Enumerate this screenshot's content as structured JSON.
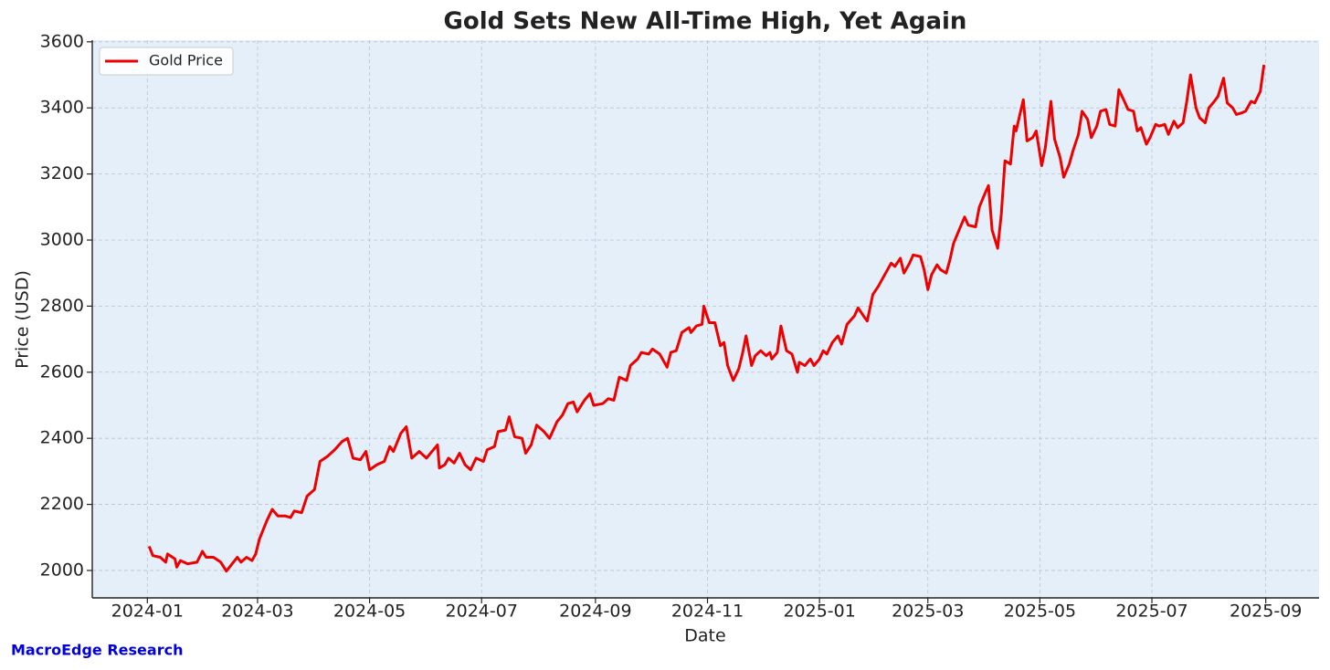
{
  "chart_data": {
    "type": "line",
    "title": "Gold Sets New All-Time High, Yet Again",
    "x_label": "Date",
    "y_label": "Price (USD)",
    "source": "MacroEdge Research",
    "legend": "upper left",
    "grid": true,
    "xlim": [
      "2023-12-02",
      "2025-09-30"
    ],
    "ylim": [
      1917,
      3605
    ],
    "xticks": [
      {
        "value": "2024-01-01",
        "label": "2024-01"
      },
      {
        "value": "2024-03-01",
        "label": "2024-03"
      },
      {
        "value": "2024-05-01",
        "label": "2024-05"
      },
      {
        "value": "2024-07-01",
        "label": "2024-07"
      },
      {
        "value": "2024-09-01",
        "label": "2024-09"
      },
      {
        "value": "2024-11-01",
        "label": "2024-11"
      },
      {
        "value": "2025-01-01",
        "label": "2025-01"
      },
      {
        "value": "2025-03-01",
        "label": "2025-03"
      },
      {
        "value": "2025-05-01",
        "label": "2025-05"
      },
      {
        "value": "2025-07-01",
        "label": "2025-07"
      },
      {
        "value": "2025-09-01",
        "label": "2025-09"
      }
    ],
    "yticks": [
      2000,
      2200,
      2400,
      2600,
      2800,
      3000,
      3200,
      3400,
      3600
    ],
    "x": [
      "2024-01-02",
      "2024-01-04",
      "2024-01-08",
      "2024-01-11",
      "2024-01-12",
      "2024-01-16",
      "2024-01-17",
      "2024-01-19",
      "2024-01-23",
      "2024-01-28",
      "2024-01-31",
      "2024-02-02",
      "2024-02-06",
      "2024-02-10",
      "2024-02-13",
      "2024-02-19",
      "2024-02-21",
      "2024-02-24",
      "2024-02-27",
      "2024-02-29",
      "2024-03-02",
      "2024-03-06",
      "2024-03-09",
      "2024-03-12",
      "2024-03-16",
      "2024-03-19",
      "2024-03-21",
      "2024-03-25",
      "2024-03-28",
      "2024-04-01",
      "2024-04-04",
      "2024-04-08",
      "2024-04-12",
      "2024-04-16",
      "2024-04-19",
      "2024-04-22",
      "2024-04-26",
      "2024-04-29",
      "2024-05-01",
      "2024-05-05",
      "2024-05-09",
      "2024-05-12",
      "2024-05-14",
      "2024-05-18",
      "2024-05-21",
      "2024-05-24",
      "2024-05-28",
      "2024-06-01",
      "2024-06-04",
      "2024-06-07",
      "2024-06-08",
      "2024-06-11",
      "2024-06-13",
      "2024-06-16",
      "2024-06-19",
      "2024-06-22",
      "2024-06-25",
      "2024-06-28",
      "2024-07-02",
      "2024-07-04",
      "2024-07-08",
      "2024-07-10",
      "2024-07-14",
      "2024-07-16",
      "2024-07-19",
      "2024-07-23",
      "2024-07-25",
      "2024-07-28",
      "2024-07-31",
      "2024-08-04",
      "2024-08-07",
      "2024-08-11",
      "2024-08-14",
      "2024-08-17",
      "2024-08-20",
      "2024-08-22",
      "2024-08-26",
      "2024-08-29",
      "2024-08-31",
      "2024-09-05",
      "2024-09-08",
      "2024-09-11",
      "2024-09-14",
      "2024-09-18",
      "2024-09-20",
      "2024-09-24",
      "2024-09-26",
      "2024-09-30",
      "2024-10-02",
      "2024-10-06",
      "2024-10-10",
      "2024-10-12",
      "2024-10-15",
      "2024-10-18",
      "2024-10-22",
      "2024-10-23",
      "2024-10-26",
      "2024-10-29",
      "2024-10-30",
      "2024-11-02",
      "2024-11-05",
      "2024-11-08",
      "2024-11-10",
      "2024-11-12",
      "2024-11-15",
      "2024-11-18",
      "2024-11-20",
      "2024-11-22",
      "2024-11-25",
      "2024-11-27",
      "2024-11-30",
      "2024-12-03",
      "2024-12-05",
      "2024-12-06",
      "2024-12-09",
      "2024-12-11",
      "2024-12-14",
      "2024-12-17",
      "2024-12-20",
      "2024-12-21",
      "2024-12-24",
      "2024-12-27",
      "2024-12-29",
      "2025-01-01",
      "2025-01-03",
      "2025-01-05",
      "2025-01-08",
      "2025-01-11",
      "2025-01-13",
      "2025-01-16",
      "2025-01-20",
      "2025-01-22",
      "2025-01-25",
      "2025-01-27",
      "2025-01-30",
      "2025-02-02",
      "2025-02-05",
      "2025-02-09",
      "2025-02-11",
      "2025-02-14",
      "2025-02-16",
      "2025-02-19",
      "2025-02-21",
      "2025-02-25",
      "2025-02-27",
      "2025-03-01",
      "2025-03-03",
      "2025-03-06",
      "2025-03-08",
      "2025-03-11",
      "2025-03-13",
      "2025-03-15",
      "2025-03-18",
      "2025-03-21",
      "2025-03-23",
      "2025-03-27",
      "2025-03-29",
      "2025-04-01",
      "2025-04-03",
      "2025-04-05",
      "2025-04-08",
      "2025-04-10",
      "2025-04-12",
      "2025-04-15",
      "2025-04-17",
      "2025-04-18",
      "2025-04-22",
      "2025-04-24",
      "2025-04-27",
      "2025-04-29",
      "2025-05-02",
      "2025-05-04",
      "2025-05-07",
      "2025-05-09",
      "2025-05-12",
      "2025-05-14",
      "2025-05-17",
      "2025-05-19",
      "2025-05-22",
      "2025-05-24",
      "2025-05-27",
      "2025-05-29",
      "2025-06-01",
      "2025-06-03",
      "2025-06-06",
      "2025-06-08",
      "2025-06-11",
      "2025-06-13",
      "2025-06-16",
      "2025-06-18",
      "2025-06-21",
      "2025-06-23",
      "2025-06-25",
      "2025-06-28",
      "2025-06-30",
      "2025-07-03",
      "2025-07-05",
      "2025-07-08",
      "2025-07-10",
      "2025-07-13",
      "2025-07-15",
      "2025-07-18",
      "2025-07-20",
      "2025-07-22",
      "2025-07-25",
      "2025-07-27",
      "2025-07-30",
      "2025-08-01",
      "2025-08-04",
      "2025-08-06",
      "2025-08-09",
      "2025-08-11",
      "2025-08-14",
      "2025-08-16",
      "2025-08-19",
      "2025-08-21",
      "2025-08-24",
      "2025-08-26",
      "2025-08-29",
      "2025-08-31"
    ],
    "series": [
      {
        "name": "Gold Price",
        "color": "#ee0000",
        "values": [
          2073,
          2045,
          2040,
          2025,
          2050,
          2035,
          2010,
          2030,
          2020,
          2025,
          2058,
          2040,
          2040,
          2025,
          1998,
          2040,
          2025,
          2040,
          2030,
          2050,
          2095,
          2150,
          2185,
          2165,
          2165,
          2160,
          2180,
          2175,
          2225,
          2245,
          2330,
          2345,
          2365,
          2390,
          2400,
          2340,
          2335,
          2360,
          2305,
          2320,
          2330,
          2375,
          2360,
          2415,
          2435,
          2340,
          2360,
          2340,
          2360,
          2380,
          2310,
          2320,
          2340,
          2325,
          2355,
          2320,
          2305,
          2340,
          2330,
          2365,
          2375,
          2420,
          2425,
          2465,
          2405,
          2400,
          2355,
          2380,
          2440,
          2420,
          2400,
          2450,
          2470,
          2505,
          2510,
          2480,
          2515,
          2535,
          2500,
          2505,
          2520,
          2515,
          2585,
          2575,
          2620,
          2640,
          2660,
          2655,
          2670,
          2655,
          2615,
          2660,
          2665,
          2720,
          2735,
          2720,
          2740,
          2745,
          2800,
          2750,
          2750,
          2680,
          2690,
          2620,
          2575,
          2610,
          2655,
          2710,
          2620,
          2650,
          2665,
          2650,
          2660,
          2640,
          2660,
          2740,
          2665,
          2655,
          2600,
          2630,
          2620,
          2640,
          2620,
          2640,
          2665,
          2655,
          2690,
          2710,
          2685,
          2745,
          2770,
          2795,
          2770,
          2755,
          2835,
          2860,
          2890,
          2930,
          2920,
          2945,
          2900,
          2930,
          2955,
          2950,
          2910,
          2850,
          2895,
          2925,
          2910,
          2900,
          2940,
          2990,
          3030,
          3070,
          3045,
          3040,
          3100,
          3140,
          3165,
          3030,
          2975,
          3080,
          3240,
          3230,
          3345,
          3330,
          3425,
          3300,
          3310,
          3330,
          3225,
          3280,
          3420,
          3305,
          3250,
          3190,
          3230,
          3270,
          3320,
          3390,
          3365,
          3310,
          3345,
          3390,
          3395,
          3350,
          3345,
          3455,
          3420,
          3395,
          3390,
          3330,
          3340,
          3290,
          3310,
          3350,
          3345,
          3350,
          3320,
          3360,
          3340,
          3355,
          3420,
          3500,
          3400,
          3370,
          3355,
          3400,
          3420,
          3435,
          3490,
          3415,
          3400,
          3380,
          3385,
          3390,
          3420,
          3415,
          3450,
          3530
        ]
      }
    ]
  }
}
